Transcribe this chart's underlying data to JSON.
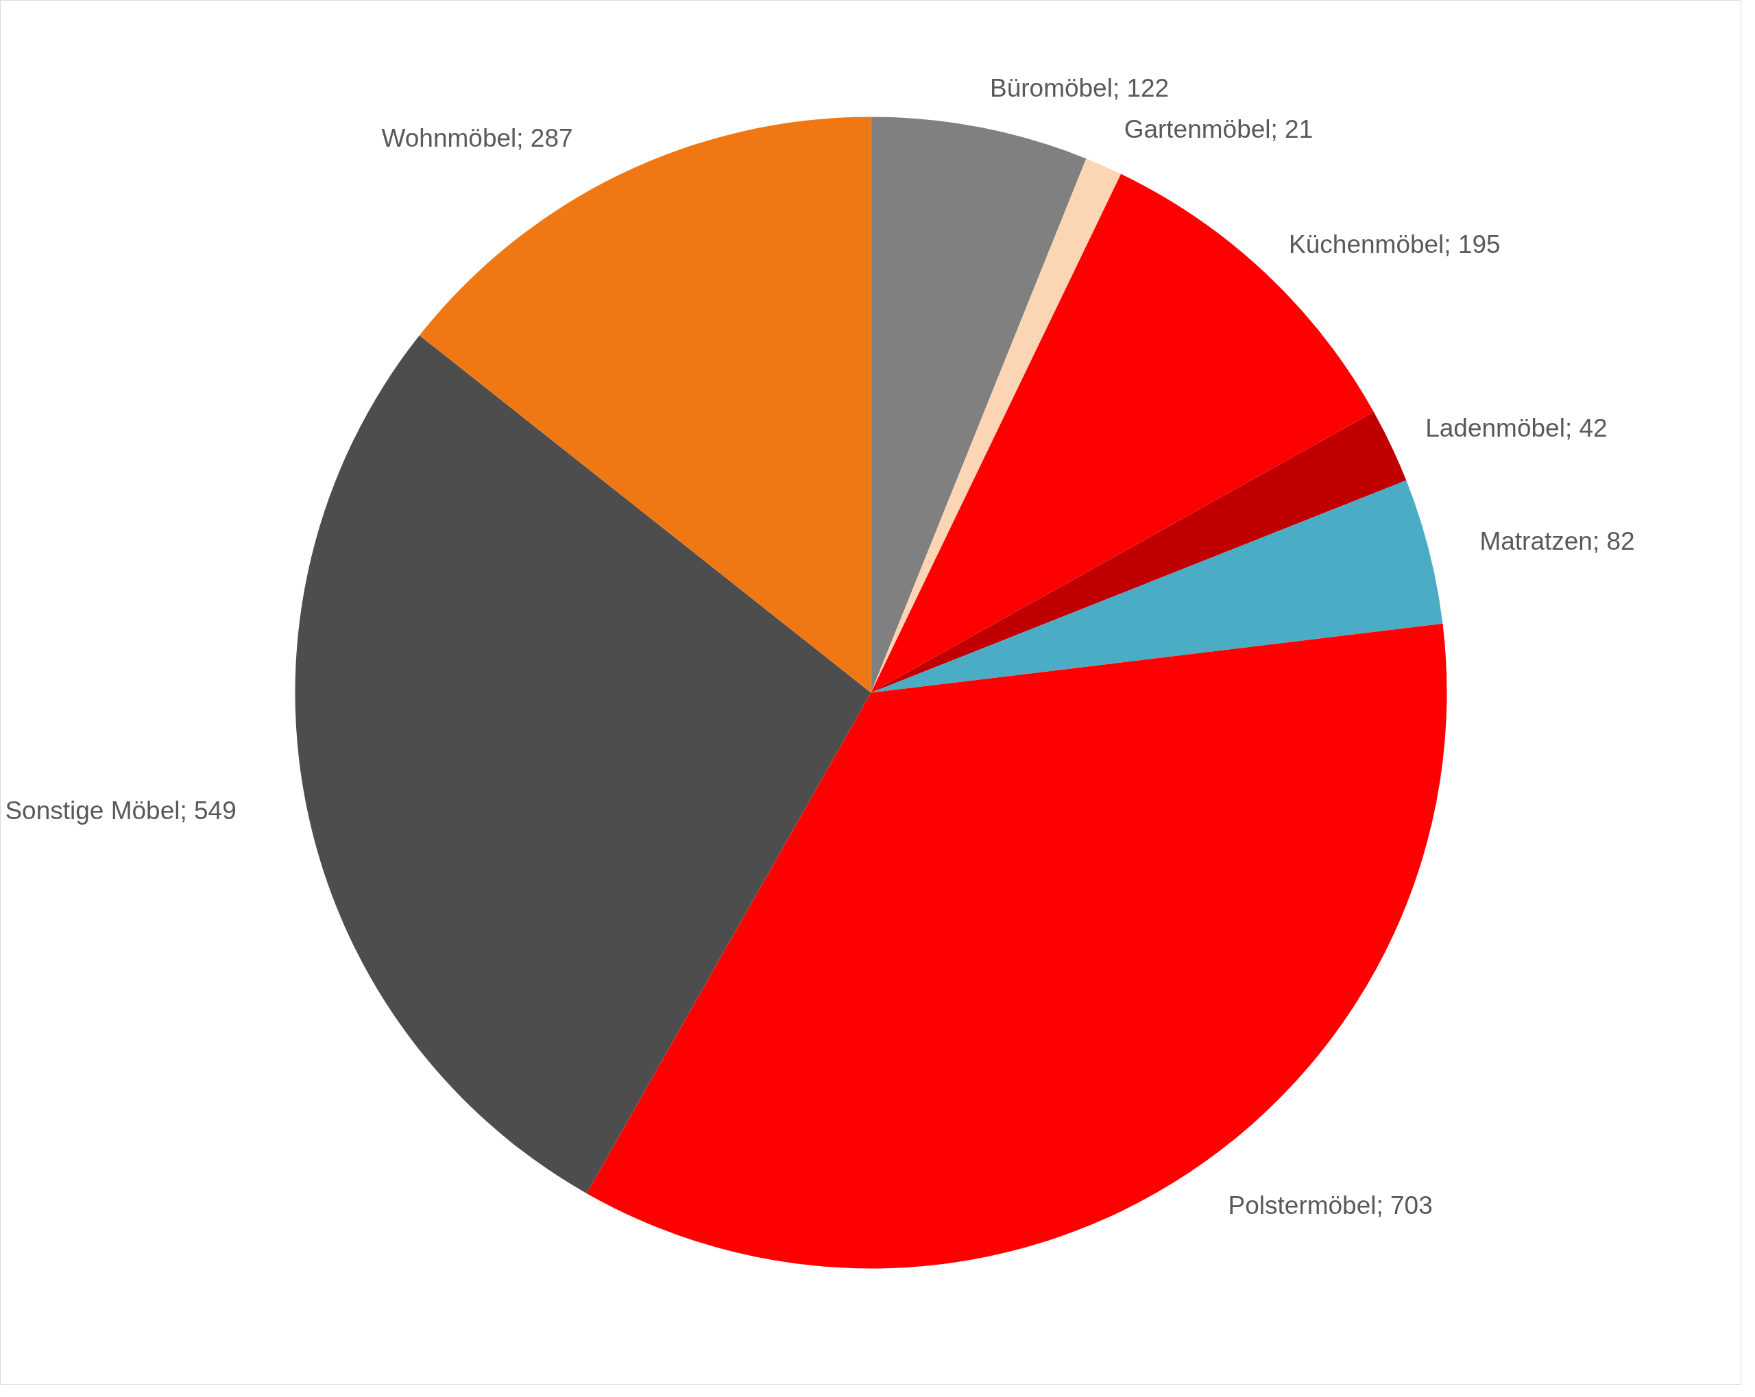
{
  "chart_data": {
    "type": "pie",
    "categories": [
      "Büromöbel",
      "Gartenmöbel",
      "Küchenmöbel",
      "Ladenmöbel",
      "Matratzen",
      "Polstermöbel",
      "Sonstige Möbel",
      "Wohnmöbel"
    ],
    "values": [
      122,
      21,
      195,
      42,
      82,
      703,
      549,
      287
    ],
    "colors": [
      "#808080",
      "#fcd5b5",
      "#ff0000",
      "#c00000",
      "#4bacc6",
      "#ff0000",
      "#4d4d4d",
      "#f07814"
    ],
    "value_labels": [
      "; 122",
      "; 21",
      "; 195",
      "; 42",
      "; 82",
      "; 703",
      "; 549",
      "; 287"
    ],
    "legend": false
  }
}
